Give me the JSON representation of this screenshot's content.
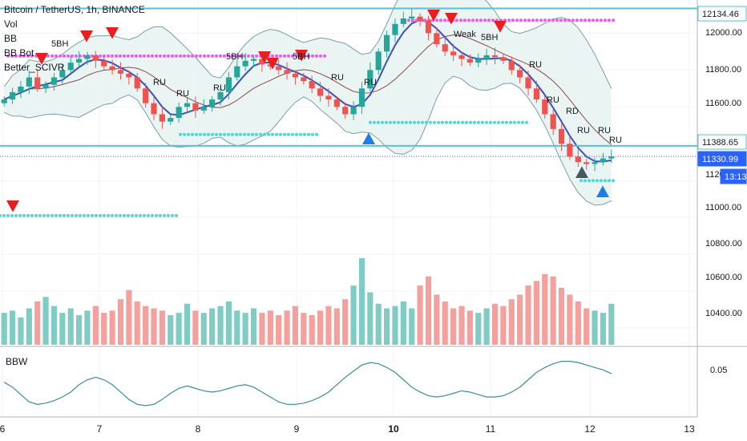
{
  "header": {
    "symbol_title": "Bitcoin / TetherUS, 1h, BINANCE"
  },
  "indicators": [
    "Vol",
    "BB",
    "BB Bot",
    "Better_SCIVR"
  ],
  "pane": {
    "name": "BBW",
    "tick_label": "0.05"
  },
  "price_axis": {
    "ticks": [
      "12000.00",
      "11800.00",
      "11600.00",
      "11400.00",
      "11200.00",
      "11000.00",
      "10800.00",
      "10600.00",
      "10400.00"
    ],
    "labels": [
      {
        "text": "12134.46",
        "kind": "horizontal-line"
      },
      {
        "text": "11388.65",
        "kind": "horizontal-line"
      },
      {
        "text": "11330.99",
        "kind": "last-price"
      },
      {
        "text": "13:13",
        "kind": "countdown"
      }
    ]
  },
  "time_axis": {
    "ticks": [
      "6",
      "7",
      "8",
      "9",
      "10",
      "11",
      "12",
      "13"
    ]
  },
  "signal_labels": [
    "5BH",
    "5BH",
    "RU",
    "RU",
    "RU",
    "RU",
    "RU",
    "RU",
    "RU",
    "RD",
    "RU",
    "RU",
    "5BH",
    "5BH",
    "Weak",
    "RU"
  ],
  "colors": {
    "up": "#26a69a",
    "down": "#ef5350",
    "vol_up": "#80cbc4",
    "vol_down": "#f4a09c",
    "bb_line": "#7a9ea8",
    "bb_fill": "#e7f3f2",
    "basis": "#8b4a4a",
    "ma": "#3f51b5",
    "hline": "#58c2d0",
    "dots_magenta": "#ec5af0",
    "dots_cyan": "#4fd8cf",
    "last_price": "#2962ff",
    "arrow_red": "#e91e1e",
    "arrow_blue": "#1e7ee9",
    "arrow_dark": "#455a64"
  },
  "chart_data": {
    "type": "candlestick",
    "title": "Bitcoin / TetherUS, 1h, BINANCE",
    "x_ticks": [
      "6",
      "7",
      "8",
      "9",
      "10",
      "11",
      "12",
      "13"
    ],
    "ylim": [
      10300,
      12180
    ],
    "y_ticks": [
      12000,
      11800,
      11600,
      11400,
      11200,
      11000,
      10800,
      10600,
      10400
    ],
    "horizontal_lines": [
      12134.46,
      11388.65
    ],
    "last_price": 11330.99,
    "close_series": [
      11640,
      11680,
      11710,
      11760,
      11700,
      11720,
      11760,
      11800,
      11840,
      11860,
      11880,
      11850,
      11820,
      11800,
      11780,
      11760,
      11700,
      11620,
      11560,
      11520,
      11540,
      11600,
      11620,
      11580,
      11600,
      11640,
      11680,
      11760,
      11820,
      11850,
      11860,
      11830,
      11820,
      11800,
      11780,
      11760,
      11740,
      11700,
      11660,
      11640,
      11600,
      11560,
      11600,
      11700,
      11800,
      11900,
      11990,
      12050,
      12080,
      12090,
      12070,
      12000,
      11940,
      11900,
      11880,
      11860,
      11840,
      11860,
      11880,
      11870,
      11850,
      11800,
      11760,
      11700,
      11640,
      11560,
      11480,
      11400,
      11330,
      11300,
      11290,
      11300,
      11320,
      11331
    ],
    "volume_series": [
      140,
      150,
      120,
      160,
      190,
      210,
      170,
      140,
      160,
      130,
      150,
      170,
      140,
      150,
      200,
      240,
      190,
      170,
      160,
      150,
      130,
      140,
      180,
      150,
      140,
      160,
      170,
      190,
      150,
      140,
      160,
      140,
      150,
      130,
      150,
      170,
      140,
      130,
      150,
      170,
      160,
      200,
      260,
      380,
      230,
      180,
      160,
      170,
      190,
      160,
      260,
      300,
      220,
      190,
      160,
      170,
      150,
      140,
      160,
      180,
      170,
      200,
      220,
      260,
      280,
      310,
      300,
      250,
      220,
      190,
      160,
      150,
      140,
      180
    ],
    "bbw_series": [
      0.048,
      0.044,
      0.038,
      0.032,
      0.03,
      0.031,
      0.033,
      0.036,
      0.04,
      0.046,
      0.05,
      0.052,
      0.05,
      0.046,
      0.04,
      0.034,
      0.03,
      0.029,
      0.03,
      0.034,
      0.039,
      0.043,
      0.045,
      0.043,
      0.041,
      0.04,
      0.041,
      0.043,
      0.045,
      0.046,
      0.044,
      0.04,
      0.036,
      0.032,
      0.03,
      0.03,
      0.031,
      0.033,
      0.036,
      0.04,
      0.046,
      0.052,
      0.057,
      0.062,
      0.064,
      0.063,
      0.06,
      0.056,
      0.05,
      0.044,
      0.04,
      0.037,
      0.036,
      0.037,
      0.039,
      0.041,
      0.04,
      0.038,
      0.036,
      0.036,
      0.037,
      0.04,
      0.044,
      0.05,
      0.056,
      0.06,
      0.063,
      0.065,
      0.065,
      0.064,
      0.062,
      0.06,
      0.058,
      0.055
    ]
  }
}
